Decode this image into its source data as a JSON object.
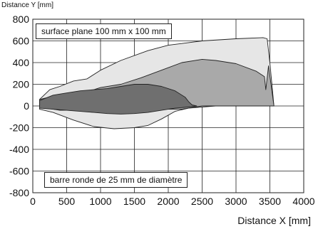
{
  "chart_data": {
    "type": "area",
    "ylabel": "Distance Y [mm]",
    "xlabel": "Distance X [mm]",
    "xlim": [
      0,
      4000
    ],
    "ylim": [
      -800,
      800
    ],
    "xticks": [
      0,
      500,
      1000,
      1500,
      2000,
      2500,
      3000,
      3500,
      4000
    ],
    "yticks": [
      -800,
      -600,
      -400,
      -200,
      0,
      200,
      400,
      600,
      800
    ],
    "grid": true,
    "annotations": [
      {
        "text": "surface plane 100 mm x 100 mm",
        "position": "top-left"
      },
      {
        "text": "barre ronde de 25 mm de diamètre",
        "position": "bottom-left"
      }
    ],
    "series": [
      {
        "fill": "#e6e6e6",
        "upper": [
          [
            100,
            60
          ],
          [
            250,
            150
          ],
          [
            400,
            180
          ],
          [
            600,
            230
          ],
          [
            800,
            250
          ],
          [
            1000,
            330
          ],
          [
            1300,
            420
          ],
          [
            1700,
            510
          ],
          [
            2000,
            560
          ],
          [
            2500,
            600
          ],
          [
            3000,
            620
          ],
          [
            3400,
            630
          ],
          [
            3460,
            620
          ],
          [
            3500,
            400
          ],
          [
            3560,
            0
          ]
        ],
        "lower": [
          [
            3560,
            0
          ],
          [
            3300,
            0
          ],
          [
            2700,
            0
          ],
          [
            2500,
            -10
          ],
          [
            2300,
            -20
          ],
          [
            2100,
            -50
          ],
          [
            1900,
            -120
          ],
          [
            1700,
            -180
          ],
          [
            1500,
            -200
          ],
          [
            1200,
            -210
          ],
          [
            900,
            -190
          ],
          [
            600,
            -130
          ],
          [
            300,
            -60
          ],
          [
            100,
            -30
          ]
        ]
      },
      {
        "fill": "#a9a9a9",
        "upper": [
          [
            100,
            60
          ],
          [
            300,
            90
          ],
          [
            600,
            100
          ],
          [
            800,
            130
          ],
          [
            1000,
            170
          ],
          [
            1300,
            200
          ],
          [
            1600,
            260
          ],
          [
            1900,
            330
          ],
          [
            2200,
            400
          ],
          [
            2500,
            430
          ],
          [
            2700,
            420
          ],
          [
            3000,
            390
          ],
          [
            3300,
            320
          ],
          [
            3420,
            270
          ],
          [
            3440,
            150
          ],
          [
            3480,
            370
          ],
          [
            3560,
            0
          ]
        ],
        "lower": [
          [
            3560,
            0
          ],
          [
            2600,
            0
          ],
          [
            2500,
            0
          ],
          [
            2400,
            -10
          ],
          [
            2200,
            -30
          ],
          [
            1900,
            -30
          ],
          [
            1600,
            -20
          ],
          [
            1300,
            -5
          ],
          [
            1000,
            -20
          ],
          [
            700,
            -40
          ],
          [
            400,
            -40
          ],
          [
            200,
            -20
          ],
          [
            100,
            0
          ]
        ]
      },
      {
        "fill": "#6f6f6f",
        "upper": [
          [
            100,
            50
          ],
          [
            300,
            100
          ],
          [
            500,
            120
          ],
          [
            700,
            140
          ],
          [
            900,
            150
          ],
          [
            1100,
            160
          ],
          [
            1300,
            180
          ],
          [
            1500,
            200
          ],
          [
            1700,
            200
          ],
          [
            1900,
            180
          ],
          [
            2100,
            140
          ],
          [
            2250,
            80
          ],
          [
            2300,
            40
          ],
          [
            2350,
            10
          ],
          [
            2420,
            0
          ]
        ],
        "lower": [
          [
            2420,
            0
          ],
          [
            2300,
            -10
          ],
          [
            2100,
            -20
          ],
          [
            1900,
            -40
          ],
          [
            1700,
            -60
          ],
          [
            1500,
            -70
          ],
          [
            1300,
            -75
          ],
          [
            1100,
            -70
          ],
          [
            900,
            -60
          ],
          [
            700,
            -50
          ],
          [
            500,
            -40
          ],
          [
            300,
            -30
          ],
          [
            100,
            -20
          ]
        ]
      }
    ]
  }
}
